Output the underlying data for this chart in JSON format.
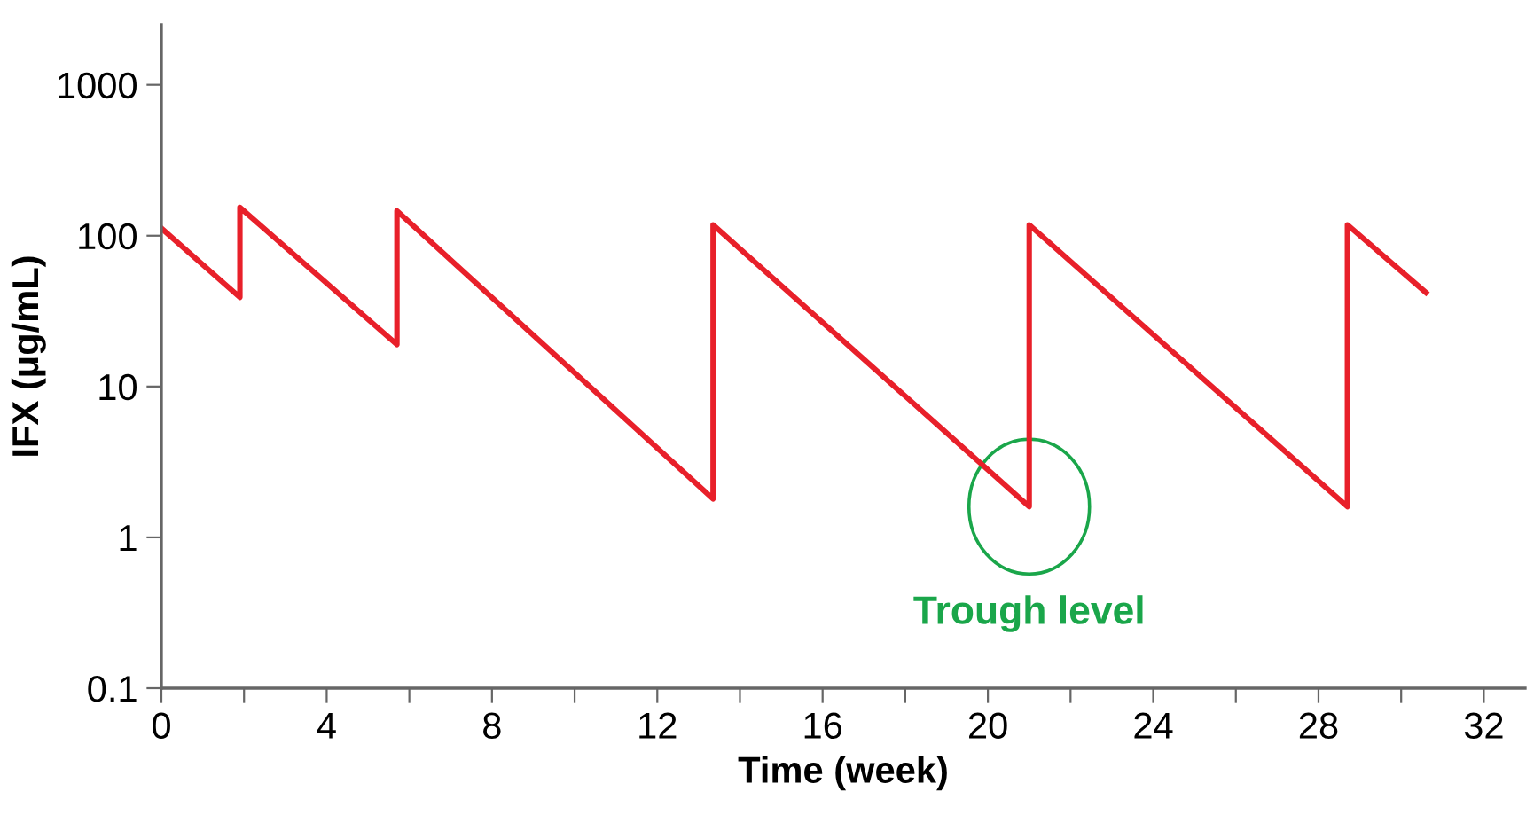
{
  "chart_data": {
    "type": "line",
    "xlabel": "Time (week)",
    "ylabel": "IFX (μg/mL)",
    "log": "y",
    "series": [
      {
        "color": "#e8202a",
        "x": [
          0,
          1.9,
          1.9,
          5.7,
          5.7,
          13.35,
          13.35,
          21.0,
          21.0,
          28.7,
          28.7,
          30.6
        ],
        "values": [
          112,
          39,
          154,
          19,
          146,
          1.8,
          118,
          1.6,
          118,
          1.6,
          118,
          42
        ]
      }
    ],
    "xlim": [
      0,
      33
    ],
    "xticks": [
      0,
      {
        "value": 2,
        "label": null
      },
      4,
      {
        "value": 6,
        "label": null
      },
      8,
      {
        "value": 10,
        "label": null
      },
      12,
      {
        "value": 14,
        "label": null
      },
      16,
      {
        "value": 18,
        "label": null
      },
      20,
      {
        "value": 22,
        "label": null
      },
      24,
      {
        "value": 26,
        "label": null
      },
      28,
      {
        "value": 30,
        "label": null
      },
      32
    ],
    "ylim": [
      0.1,
      2500
    ],
    "yticks": [
      0.1,
      1,
      10,
      100,
      1000
    ],
    "annotations": [
      {
        "text": "Trough level",
        "x": 21.0,
        "y": 1.6
      }
    ],
    "grid": false,
    "legend": false,
    "marker": "none",
    "line_style": "solid"
  }
}
